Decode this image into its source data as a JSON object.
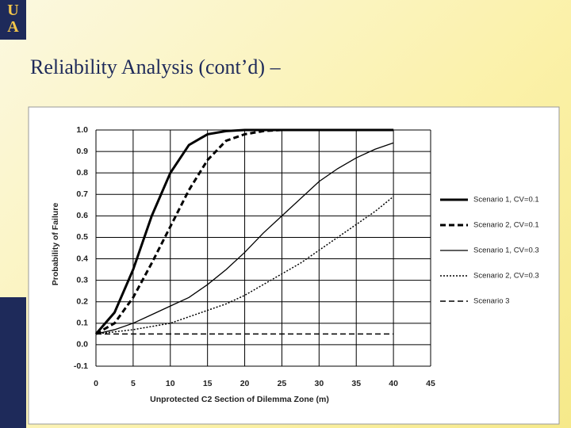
{
  "slide": {
    "title": "Reliability Analysis (cont’d) –",
    "logo_top": "U",
    "logo_bottom": "A"
  },
  "chart_data": {
    "type": "line",
    "x_label": "Unprotected C2 Section of Dilemma Zone (m)",
    "y_label": "Probability of Failure",
    "x": [
      0,
      2.5,
      5,
      7.5,
      10,
      12.5,
      15,
      17.5,
      20,
      22.5,
      25,
      27.5,
      30,
      32.5,
      35,
      37.5,
      40
    ],
    "series": [
      {
        "name": "Scenario 1, CV=0.1",
        "color": "#000000",
        "line_style": "solid",
        "line_width": 3,
        "values": [
          0.05,
          0.15,
          0.35,
          0.6,
          0.8,
          0.93,
          0.98,
          0.995,
          1,
          1,
          1,
          1,
          1,
          1,
          1,
          1,
          1
        ]
      },
      {
        "name": "Scenario 2, CV=0.1",
        "color": "#000000",
        "line_style": "dashed",
        "line_width": 3,
        "values": [
          0.05,
          0.1,
          0.22,
          0.38,
          0.55,
          0.72,
          0.86,
          0.95,
          0.98,
          0.995,
          1,
          1,
          1,
          1,
          1,
          1,
          1
        ]
      },
      {
        "name": "Scenario 1, CV=0.3",
        "color": "#000000",
        "line_style": "solid",
        "line_width": 1.3,
        "values": [
          0.05,
          0.07,
          0.1,
          0.14,
          0.18,
          0.22,
          0.28,
          0.35,
          0.43,
          0.52,
          0.6,
          0.68,
          0.76,
          0.82,
          0.87,
          0.91,
          0.94
        ]
      },
      {
        "name": "Scenario 2, CV=0.3",
        "color": "#000000",
        "line_style": "dotted",
        "line_width": 1.5,
        "values": [
          0.05,
          0.06,
          0.07,
          0.085,
          0.1,
          0.13,
          0.16,
          0.19,
          0.23,
          0.28,
          0.33,
          0.38,
          0.44,
          0.5,
          0.56,
          0.62,
          0.69
        ]
      },
      {
        "name": "Scenario 3",
        "color": "#000000",
        "line_style": "dashed",
        "line_width": 1.5,
        "values": [
          0.05,
          0.05,
          0.05,
          0.05,
          0.05,
          0.05,
          0.05,
          0.05,
          0.05,
          0.05,
          0.05,
          0.05,
          0.05,
          0.05,
          0.05,
          0.05,
          0.05
        ]
      }
    ],
    "xlim": [
      0,
      45
    ],
    "xticks": [
      0,
      5,
      10,
      15,
      20,
      25,
      30,
      35,
      40,
      45
    ],
    "ylim": [
      -0.1,
      1.0
    ],
    "yticks": [
      -0.1,
      {
        "value": 0,
        "label": "0.0"
      },
      0.1,
      0.2,
      0.3,
      0.4,
      0.5,
      0.6,
      0.7,
      0.8,
      0.9,
      {
        "value": 1,
        "label": "1.0"
      }
    ],
    "grid": true,
    "legend": "right"
  }
}
